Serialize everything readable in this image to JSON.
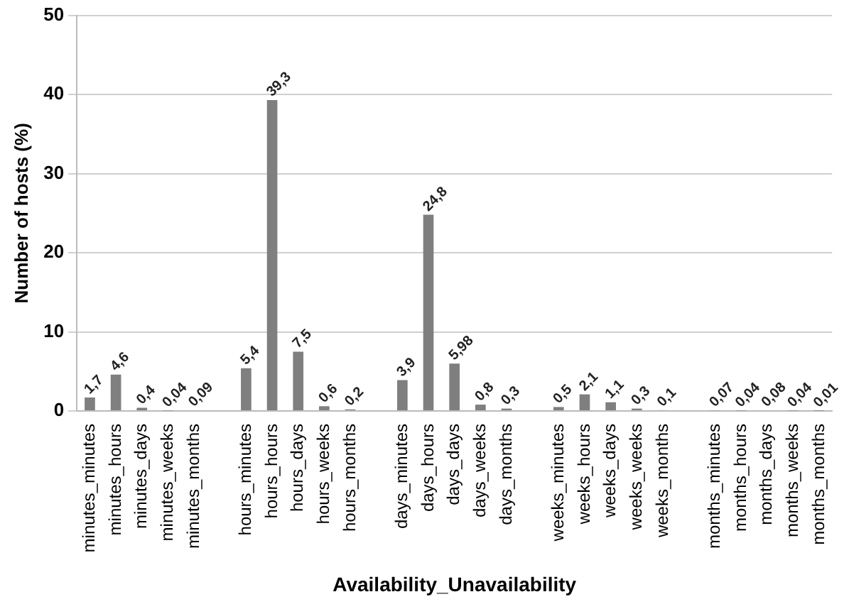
{
  "chart_data": {
    "type": "bar",
    "xlabel": "Availability_Unavailability",
    "ylabel": "Number of hosts (%)",
    "categories": [
      "minutes_minutes",
      "minutes_hours",
      "minutes_days",
      "minutes_weeks",
      "minutes_months",
      null,
      "hours_minutes",
      "hours_hours",
      "hours_days",
      "hours_weeks",
      "hours_months",
      null,
      "days_minutes",
      "days_hours",
      "days_days",
      "days_weeks",
      "days_months",
      null,
      "weeks_minutes",
      "weeks_hours",
      "weeks_days",
      "weeks_weeks",
      "weeks_months",
      null,
      "months_minutes",
      "months_hours",
      "months_days",
      "months_weeks",
      "months_months"
    ],
    "values": [
      1.7,
      4.6,
      0.4,
      0.04,
      0.09,
      null,
      5.4,
      39.3,
      7.5,
      0.6,
      0.2,
      null,
      3.9,
      24.8,
      5.98,
      0.8,
      0.3,
      null,
      0.5,
      2.1,
      1.1,
      0.3,
      0.1,
      null,
      0.07,
      0.04,
      0.08,
      0.04,
      0.01
    ],
    "value_labels": [
      "1,7",
      "4,6",
      "0,4",
      "0,04",
      "0,09",
      null,
      "5,4",
      "39,3",
      "7,5",
      "0,6",
      "0,2",
      null,
      "3,9",
      "24,8",
      "5,98",
      "0,8",
      "0,3",
      null,
      "0,5",
      "2,1",
      "1,1",
      "0,3",
      "0,1",
      null,
      "0,07",
      "0,04",
      "0,08",
      "0,04",
      "0,01"
    ],
    "color": "#7f7f7f",
    "ylim": [
      0,
      50
    ],
    "yticks": [
      0,
      10,
      20,
      30,
      40,
      50
    ],
    "grid": "y",
    "legend": false
  }
}
